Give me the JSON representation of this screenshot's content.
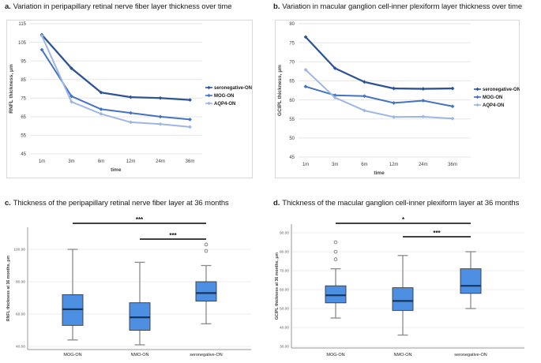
{
  "figure": {
    "panels": [
      {
        "label": "a.",
        "title": "Variation in peripapillary retinal nerve fiber layer thickness over time"
      },
      {
        "label": "b.",
        "title": "Variation in macular ganglion cell-inner plexiform layer thickness over time"
      },
      {
        "label": "c.",
        "title": "Thickness of the peripapillary retinal nerve fiber layer at 36 months"
      },
      {
        "label": "d.",
        "title": "Thickness of the macular ganglion cell-inner plexiform layer at 36 months"
      }
    ]
  },
  "colors": {
    "seronegative_on": "#2E5496",
    "mog_on": "#4472C4",
    "aqp4_on": "#9DB6E4",
    "box_fill": "#4D8FE3",
    "box_border": "#3A3A3A",
    "box_median": "#17375E",
    "whisker": "#8A8A8A",
    "gridline": "#E6E6E6",
    "panel_border": "#D9D9D9",
    "axis_line": "#9A9A9A",
    "significance_bar": "#262626",
    "tick_text": "#404040",
    "legend_text": "#1A1A1A"
  },
  "chart_data": [
    {
      "id": "a",
      "type": "line",
      "title": "a. Variation in peripapillary retinal nerve fiber layer thickness over time",
      "xlabel": "time",
      "ylabel": "RNFL thickness, μm",
      "categories": [
        "1m",
        "3m",
        "6m",
        "12m",
        "24m",
        "36m"
      ],
      "ylim": [
        45,
        115
      ],
      "yticks": [
        45,
        55,
        65,
        75,
        85,
        95,
        105,
        115
      ],
      "grid": true,
      "legend_position": "right",
      "series": [
        {
          "name": "seronegative-ON",
          "color": "#2E5496",
          "values": [
            109,
            91,
            78,
            75.5,
            75,
            74
          ]
        },
        {
          "name": "MOG-ON",
          "color": "#4472C4",
          "values": [
            101,
            76,
            69,
            67,
            65,
            63.5
          ]
        },
        {
          "name": "AQP4-ON",
          "color": "#9DB6E4",
          "values": [
            108.5,
            73,
            66.5,
            62,
            61,
            59.5
          ]
        }
      ]
    },
    {
      "id": "b",
      "type": "line",
      "title": "b. Variation in macular ganglion cell-inner plexiform layer thickness over time",
      "xlabel": "time",
      "ylabel": "GCIPL thickness, μm",
      "categories": [
        "1m",
        "3m",
        "6m",
        "12m",
        "24m",
        "36m"
      ],
      "ylim": [
        45,
        80
      ],
      "yticks": [
        45,
        50,
        55,
        60,
        65,
        70,
        75,
        80
      ],
      "grid": true,
      "legend_position": "right",
      "series": [
        {
          "name": "seronegative-ON",
          "color": "#2E5496",
          "values": [
            76.5,
            68.3,
            64.7,
            63,
            62.9,
            63
          ]
        },
        {
          "name": "MOG-ON",
          "color": "#4472C4",
          "values": [
            63.5,
            61.2,
            61,
            59.2,
            59.8,
            58.3
          ]
        },
        {
          "name": "AQP4-ON",
          "color": "#9DB6E4",
          "values": [
            67.9,
            60.6,
            57.2,
            55.5,
            55.6,
            55.1
          ]
        }
      ]
    },
    {
      "id": "c",
      "type": "box",
      "title": "c. Thickness of the peripapillary retinal nerve fiber layer at 36 months",
      "xlabel": "",
      "ylabel": "RNFL thickness at 36 months, μm",
      "categories": [
        "MOG-ON",
        "NMO-ON",
        "seronegative-ON"
      ],
      "ylim": [
        36,
        110
      ],
      "yticks": [
        40,
        60,
        80,
        100
      ],
      "ytick_labels": [
        "40.00",
        "60.00",
        "80.00",
        "100.00"
      ],
      "grid": true,
      "boxes": [
        {
          "category": "MOG-ON",
          "whisker_low": 44,
          "q1": 53,
          "median": 63,
          "q3": 72,
          "whisker_high": 100,
          "outliers": []
        },
        {
          "category": "NMO-ON",
          "whisker_low": 41,
          "q1": 50,
          "median": 58,
          "q3": 67,
          "whisker_high": 92,
          "outliers": []
        },
        {
          "category": "seronegative-ON",
          "whisker_low": 54,
          "q1": 68,
          "median": 73,
          "q3": 80,
          "whisker_high": 90,
          "outliers": [
            99,
            103
          ]
        }
      ],
      "significance": [
        {
          "from": "MOG-ON",
          "to": "seronegative-ON",
          "label": "***"
        },
        {
          "from": "NMO-ON",
          "to": "seronegative-ON",
          "label": "***"
        }
      ]
    },
    {
      "id": "d",
      "type": "box",
      "title": "d. Thickness of the macular ganglion cell-inner plexiform layer at 36 months",
      "xlabel": "",
      "ylabel": "GCIPL thickness at 36 months, μm",
      "categories": [
        "MOG-ON",
        "NMO-ON",
        "seronegative-ON"
      ],
      "ylim": [
        27,
        95
      ],
      "yticks": [
        30,
        40,
        50,
        60,
        70,
        80,
        90
      ],
      "ytick_labels": [
        "30.00",
        "40.00",
        "50.00",
        "60.00",
        "70.00",
        "80.00",
        "90.00"
      ],
      "grid": true,
      "boxes": [
        {
          "category": "MOG-ON",
          "whisker_low": 45,
          "q1": 53,
          "median": 57,
          "q3": 62,
          "whisker_high": 71,
          "outliers": [
            76,
            80,
            85
          ]
        },
        {
          "category": "NMO-ON",
          "whisker_low": 36,
          "q1": 49,
          "median": 54,
          "q3": 61,
          "whisker_high": 78,
          "outliers": []
        },
        {
          "category": "seronegative-ON",
          "whisker_low": 50,
          "q1": 58,
          "median": 62,
          "q3": 71,
          "whisker_high": 80,
          "outliers": []
        }
      ],
      "significance": [
        {
          "from": "MOG-ON",
          "to": "seronegative-ON",
          "label": "*"
        },
        {
          "from": "NMO-ON",
          "to": "seronegative-ON",
          "label": "***"
        }
      ]
    }
  ]
}
